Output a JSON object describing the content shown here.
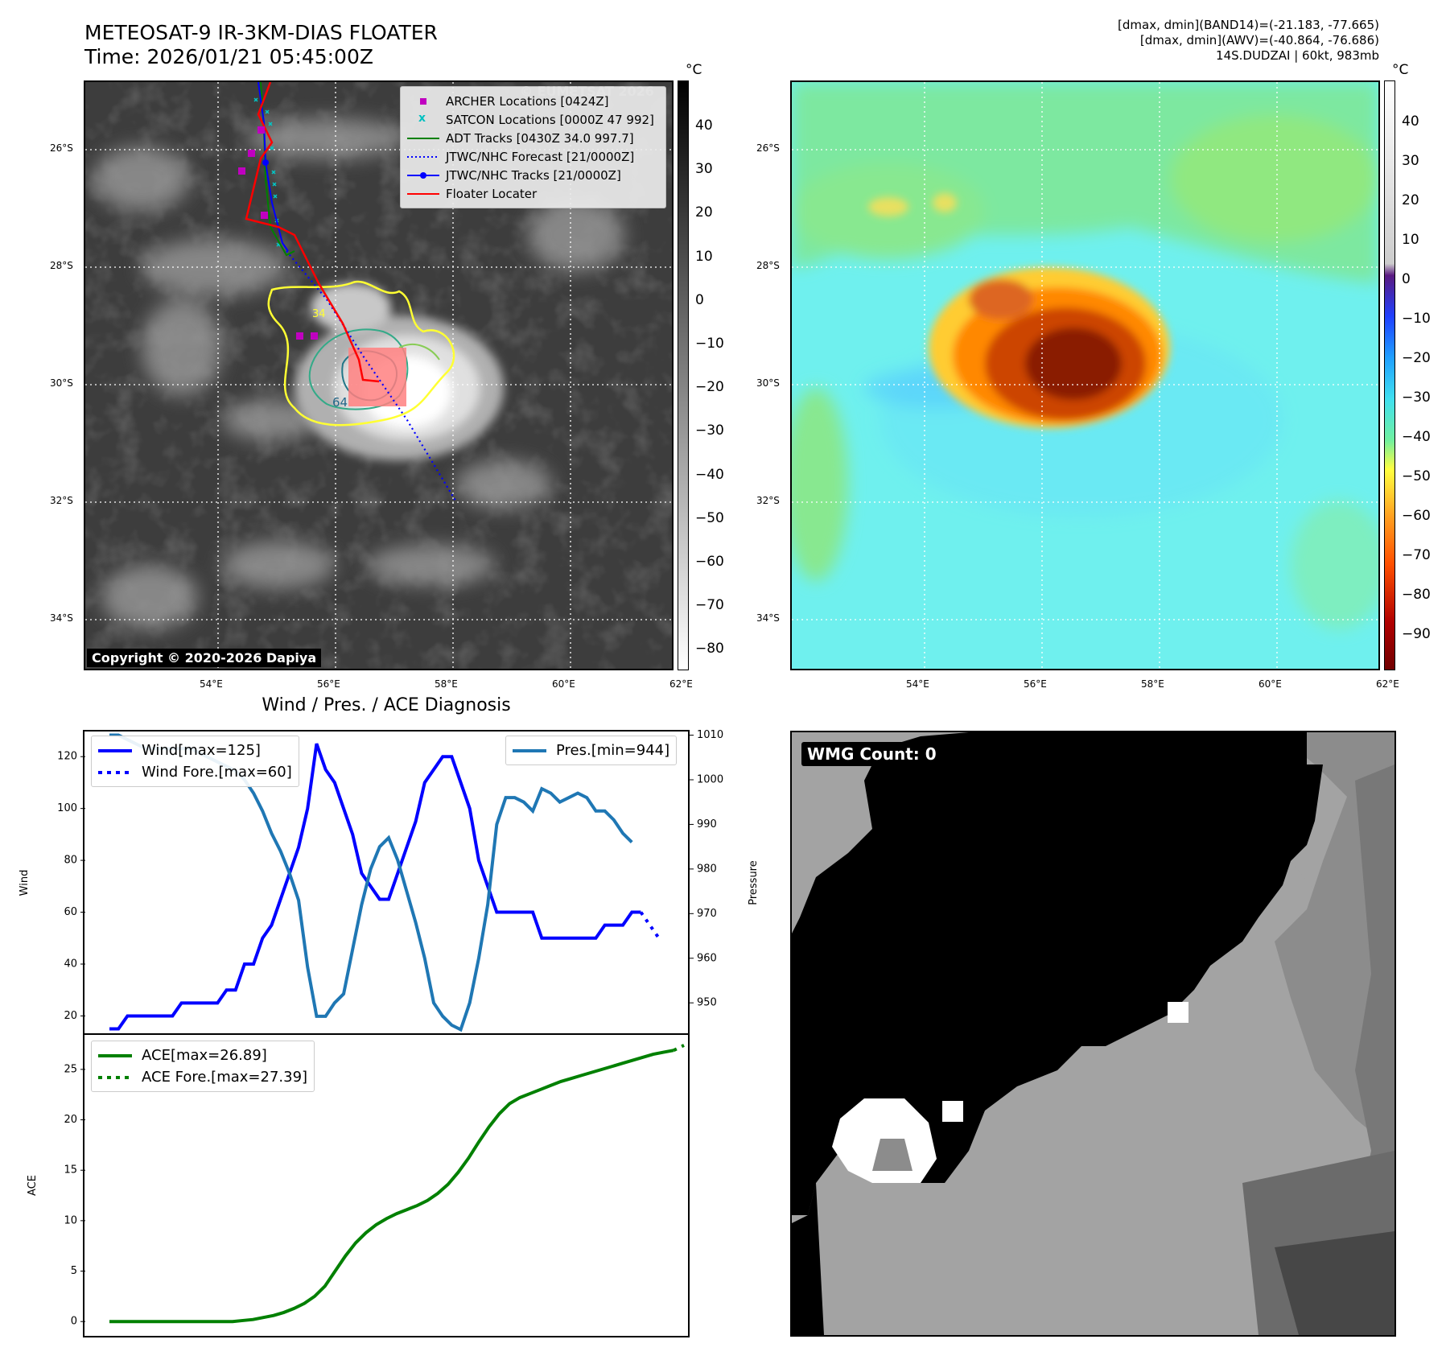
{
  "header": {
    "title_line1": "METEOSAT-9 IR-3KM-DIAS FLOATER",
    "title_line2": "Time: 2026/01/21 05:45:00Z",
    "stats_line1": "[dmax, dmin](BAND14)=(-21.183, -77.665)",
    "stats_line2": "[dmax, dmin](AWV)=(-40.864, -76.686)",
    "stats_line3": "14S.DUDZAI | 60kt, 983mb"
  },
  "map": {
    "lat_labels": [
      "26°S",
      "28°S",
      "30°S",
      "32°S",
      "34°S"
    ],
    "lon_labels": [
      "54°E",
      "56°E",
      "58°E",
      "60°E",
      "62°E"
    ],
    "copyright": "Copyright © 2020-2026 Dapiya",
    "watermark": "© EUMETSAT 2026",
    "contour_labels": [
      "64",
      "34"
    ],
    "legend": [
      {
        "label": "ARCHER Locations [0424Z]",
        "color": "#c000c0",
        "kind": "square"
      },
      {
        "label": "SATCON Locations [0000Z 47 992]",
        "color": "#00c0c0",
        "kind": "x"
      },
      {
        "label": "ADT Tracks [0430Z 34.0 997.7]",
        "color": "#008000",
        "kind": "line"
      },
      {
        "label": "JTWC/NHC Forecast [21/0000Z]",
        "color": "#0000ff",
        "kind": "dotted"
      },
      {
        "label": "JTWC/NHC Tracks [21/0000Z]",
        "color": "#0000ff",
        "kind": "line-dot"
      },
      {
        "label": "Floater Locater",
        "color": "#ff0000",
        "kind": "line"
      }
    ]
  },
  "colorbar_ir": {
    "unit": "°C",
    "ticks": [
      "40",
      "30",
      "20",
      "10",
      "0",
      "−10",
      "−20",
      "−30",
      "−40",
      "−50",
      "−60",
      "−70",
      "−80"
    ]
  },
  "colorbar_wv": {
    "unit": "°C",
    "ticks": [
      "40",
      "30",
      "20",
      "10",
      "0",
      "−10",
      "−20",
      "−30",
      "−40",
      "−50",
      "−60",
      "−70",
      "−80",
      "−90"
    ]
  },
  "diagnosis": {
    "title": "Wind / Pres. / ACE Diagnosis",
    "wind_ylabel": "Wind",
    "pres_ylabel": "Pressure",
    "ace_ylabel": "ACE",
    "wind_legend": [
      "Wind[max=125]",
      "Wind Fore.[max=60]"
    ],
    "pres_legend": "Pres.[min=944]",
    "ace_legend": [
      "ACE[max=26.89]",
      "ACE Fore.[max=27.39]"
    ],
    "wind_ticks": [
      "20",
      "40",
      "60",
      "80",
      "100",
      "120"
    ],
    "pres_ticks": [
      "950",
      "960",
      "970",
      "980",
      "990",
      "1000",
      "1010"
    ],
    "ace_ticks": [
      "0",
      "5",
      "10",
      "15",
      "20",
      "25"
    ]
  },
  "wmg": {
    "label": "WMG Count: 0"
  },
  "colors": {
    "wind": "#0000ff",
    "pressure": "#1f77b4",
    "ace": "#008000"
  },
  "chart_data": [
    {
      "type": "line",
      "title": "Wind / Pres. / ACE Diagnosis",
      "ylabel": "Wind",
      "ylim": [
        13,
        130
      ],
      "series": [
        {
          "name": "Wind[max=125]",
          "values": [
            15,
            15,
            20,
            20,
            20,
            20,
            20,
            20,
            25,
            25,
            25,
            25,
            25,
            30,
            30,
            40,
            40,
            50,
            55,
            65,
            75,
            85,
            100,
            125,
            115,
            110,
            100,
            90,
            75,
            70,
            65,
            65,
            75,
            85,
            95,
            110,
            115,
            120,
            120,
            110,
            100,
            80,
            70,
            60,
            60,
            60,
            60,
            60,
            50,
            50,
            50,
            50,
            50,
            50,
            50,
            55,
            55,
            55,
            60,
            60
          ]
        },
        {
          "name": "Wind Fore.[max=60]",
          "values": [
            60,
            55,
            50
          ],
          "offset": 59
        }
      ]
    },
    {
      "type": "line",
      "ylabel": "Pressure",
      "ylim": [
        943,
        1011
      ],
      "series": [
        {
          "name": "Pres.[min=944]",
          "values": [
            1010,
            1010,
            1009,
            1008,
            1007,
            1007,
            1007,
            1007,
            1007,
            1007,
            1006,
            1005,
            1004,
            1003,
            1002,
            1000,
            997,
            993,
            988,
            984,
            979,
            973,
            958,
            947,
            947,
            950,
            952,
            962,
            972,
            980,
            985,
            987,
            982,
            975,
            968,
            960,
            950,
            947,
            945,
            944,
            950,
            960,
            972,
            990,
            996,
            996,
            995,
            993,
            998,
            997,
            995,
            996,
            997,
            996,
            993,
            993,
            991,
            988,
            986
          ]
        }
      ]
    },
    {
      "type": "line",
      "ylabel": "ACE",
      "ylim": [
        -1.5,
        28.5
      ],
      "series": [
        {
          "name": "ACE[max=26.89]",
          "values": [
            0,
            0,
            0,
            0,
            0,
            0,
            0,
            0,
            0,
            0,
            0,
            0,
            0,
            0.1,
            0.2,
            0.4,
            0.6,
            0.9,
            1.3,
            1.8,
            2.5,
            3.5,
            5,
            6.5,
            7.8,
            8.8,
            9.6,
            10.2,
            10.7,
            11.1,
            11.5,
            12,
            12.7,
            13.6,
            14.8,
            16.2,
            17.8,
            19.3,
            20.6,
            21.6,
            22.2,
            22.6,
            23,
            23.4,
            23.8,
            24.1,
            24.4,
            24.7,
            25,
            25.3,
            25.6,
            25.9,
            26.2,
            26.5,
            26.7,
            26.89
          ]
        },
        {
          "name": "ACE Fore.[max=27.39]",
          "values": [
            26.89,
            27.39
          ],
          "offset": 55
        }
      ]
    }
  ]
}
